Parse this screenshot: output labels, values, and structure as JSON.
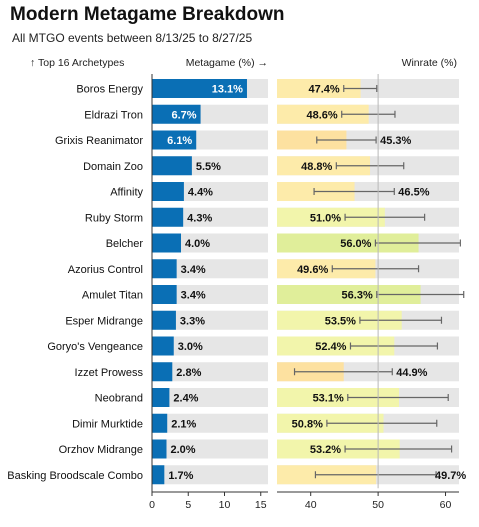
{
  "title": "Modern Metagame Breakdown",
  "subtitle": "All MTGO events between 8/13/25 to 8/27/25",
  "headers": {
    "archetypes": "↑ Top 16 Archetypes",
    "metagame": "Metagame (%) →",
    "winrate": "Winrate (%)"
  },
  "chart_data": {
    "type": "bar",
    "categories": [
      "Boros Energy",
      "Eldrazi Tron",
      "Grixis Reanimator",
      "Domain Zoo",
      "Affinity",
      "Ruby Storm",
      "Belcher",
      "Azorius Control",
      "Amulet Titan",
      "Esper Midrange",
      "Goryo's Vengeance",
      "Izzet Prowess",
      "Neobrand",
      "Dimir Murktide",
      "Orzhov Midrange",
      "Basking Broodscale Combo"
    ],
    "series": [
      {
        "name": "Metagame (%)",
        "values": [
          13.1,
          6.7,
          6.1,
          5.5,
          4.4,
          4.3,
          4.0,
          3.4,
          3.4,
          3.3,
          3.0,
          2.8,
          2.4,
          2.1,
          2.0,
          1.7
        ],
        "labels": [
          "13.1%",
          "6.7%",
          "6.1%",
          "5.5%",
          "4.4%",
          "4.3%",
          "4.0%",
          "3.4%",
          "3.4%",
          "3.3%",
          "3.0%",
          "2.8%",
          "2.4%",
          "2.1%",
          "2.0%",
          "1.7%"
        ],
        "xlim": [
          0,
          16
        ],
        "ticks": [
          "0",
          "5",
          "10",
          "15"
        ],
        "color": "#0a6fb5"
      },
      {
        "name": "Winrate (%)",
        "values": [
          47.4,
          48.6,
          45.3,
          48.8,
          46.5,
          51.0,
          56.0,
          49.6,
          56.3,
          53.5,
          52.4,
          44.9,
          53.1,
          50.8,
          53.2,
          49.7
        ],
        "labels": [
          "47.4%",
          "48.6%",
          "45.3%",
          "48.8%",
          "46.5%",
          "51.0%",
          "56.0%",
          "49.6%",
          "56.3%",
          "53.5%",
          "52.4%",
          "44.9%",
          "53.1%",
          "50.8%",
          "53.2%",
          "49.7%"
        ],
        "ci_low": [
          44.9,
          44.6,
          40.9,
          43.8,
          40.5,
          45.1,
          49.6,
          43.2,
          49.8,
          47.3,
          45.9,
          37.6,
          45.5,
          42.4,
          45.1,
          40.7
        ],
        "ci_high": [
          49.8,
          52.5,
          49.7,
          53.8,
          52.4,
          56.9,
          62.2,
          56.0,
          62.7,
          59.4,
          58.8,
          52.1,
          60.4,
          58.7,
          60.9,
          58.6
        ],
        "xlim": [
          35,
          62
        ],
        "ticks": [
          "40",
          "50",
          "60"
        ],
        "reference_line": 50
      }
    ],
    "colors": {
      "row_background": "#e6e6e6",
      "win_above_50_strong": "#e0ee9a",
      "win_above_50": "#f2f5ab",
      "win_below_50": "#fdebaa",
      "win_below_50_strong": "#fde1a0",
      "error_bar": "#666666"
    }
  }
}
